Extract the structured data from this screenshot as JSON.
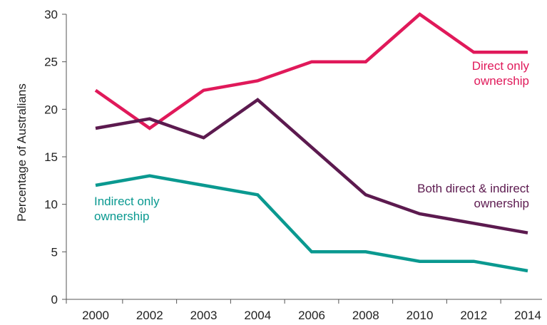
{
  "chart_data": {
    "type": "line",
    "title": "",
    "xlabel": "",
    "ylabel": "Percentage of Australians",
    "ylim": [
      0,
      30
    ],
    "yticks": [
      0,
      5,
      10,
      15,
      20,
      25,
      30
    ],
    "grid": false,
    "categories": [
      "2000",
      "2002",
      "2003",
      "2004",
      "2006",
      "2008",
      "2010",
      "2012",
      "2014"
    ],
    "series": [
      {
        "name": "Direct only ownership",
        "label_lines": [
          "Direct only",
          "ownership"
        ],
        "color": "#e0195a",
        "values": [
          22,
          18,
          22,
          23,
          25,
          25,
          30,
          26,
          26
        ]
      },
      {
        "name": "Both direct & indirect ownership",
        "label_lines": [
          "Both direct & indirect",
          "ownership"
        ],
        "color": "#5c1a4f",
        "values": [
          18,
          19,
          17,
          21,
          16,
          11,
          9,
          8,
          7
        ]
      },
      {
        "name": "Indirect only ownership",
        "label_lines": [
          "Indirect only",
          "ownership"
        ],
        "color": "#0a9990",
        "values": [
          12,
          13,
          12,
          11,
          5,
          5,
          4,
          4,
          3
        ]
      }
    ]
  }
}
